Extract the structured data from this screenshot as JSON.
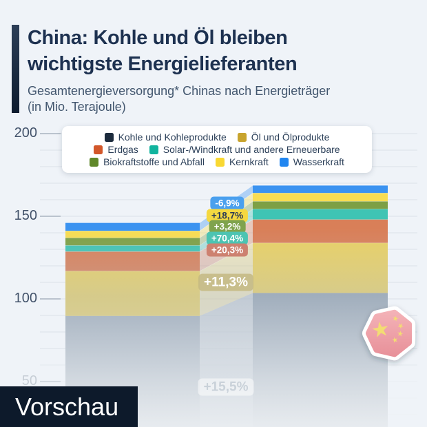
{
  "header": {
    "title_line1": "China: Kohle und Öl bleiben",
    "title_line2": "wichtigste Energielieferanten",
    "subtitle_line1": "Gesamtenergieversorgung* Chinas nach Energieträger",
    "subtitle_line2": "(in Mio. Terajoule)"
  },
  "preview": {
    "label": "Vorschau"
  },
  "y_axis": {
    "ticks": [
      200,
      150,
      100,
      50
    ],
    "faded_ticks": [
      50
    ]
  },
  "legend": {
    "rows": [
      [
        {
          "label": "Kohle und Kohleprodukte",
          "color": "#1c2b3d"
        },
        {
          "label": "Öl und Ölprodukte",
          "color": "#c8a42e"
        }
      ],
      [
        {
          "label": "Erdgas",
          "color": "#d2572a"
        },
        {
          "label": "Solar-/Windkraft und andere Erneuerbare",
          "color": "#12b49e"
        }
      ],
      [
        {
          "label": "Biokraftstoffe und Abfall",
          "color": "#5f8729"
        },
        {
          "label": "Kernkraft",
          "color": "#f9d832"
        },
        {
          "label": "Wasserkraft",
          "color": "#2186f0"
        }
      ]
    ]
  },
  "chart_data": {
    "type": "area",
    "stacked": true,
    "title": "Gesamtenergieversorgung Chinas nach Energieträger",
    "unit": "Mio. Terajoule",
    "categories": [
      "",
      ""
    ],
    "ylim": [
      0,
      200
    ],
    "yticks": [
      50,
      100,
      150,
      200
    ],
    "grid": true,
    "legend_position": "top",
    "series": [
      {
        "name": "Kohle und Kohleprodukte",
        "values": [
          89.7,
          103.6
        ],
        "change": "+15,5%",
        "color": "#1c2b3d",
        "bar_color": "#90a0b1"
      },
      {
        "name": "Öl und Ölprodukte",
        "values": [
          27.2,
          30.3
        ],
        "change": "+11,3%",
        "color": "#c8a42e",
        "bar_color": "#e9d164"
      },
      {
        "name": "Erdgas",
        "values": [
          11.8,
          14.2
        ],
        "change": "+20,3%",
        "color": "#d2572a",
        "bar_color": "#d97f58"
      },
      {
        "name": "Solar-/Windkraft und andere Erneuerbare",
        "values": [
          3.7,
          6.3
        ],
        "change": "+70,4%",
        "color": "#12b49e",
        "bar_color": "#3fc4b4"
      },
      {
        "name": "Biokraftstoffe und Abfall",
        "values": [
          4.6,
          4.7
        ],
        "change": "+3,2%",
        "color": "#5f8729",
        "bar_color": "#7da045"
      },
      {
        "name": "Kernkraft",
        "values": [
          4.2,
          5.0
        ],
        "change": "+18,7%",
        "color": "#f9d832",
        "bar_color": "#f8dd52"
      },
      {
        "name": "Wasserkraft",
        "values": [
          4.9,
          4.6
        ],
        "change": "-6,9%",
        "color": "#2186f0",
        "bar_color": "#3b93f0"
      }
    ]
  },
  "change_labels": [
    {
      "series": "Wasserkraft",
      "text": "-6,9%",
      "bg": "#4aa0ee",
      "fg": "#ffffff",
      "size": "small"
    },
    {
      "series": "Kernkraft",
      "text": "+18,7%",
      "bg": "#f5d840",
      "fg": "#2b3a55",
      "size": "small"
    },
    {
      "series": "Biokraftstoffe und Abfall",
      "text": "+3,2%",
      "bg": "#7fa34d",
      "fg": "#ffffff",
      "size": "small"
    },
    {
      "series": "Solar-/Windkraft und andere Erneuerbare",
      "text": "+70,4%",
      "bg": "#4cc4b2",
      "fg": "#ffffff",
      "size": "small"
    },
    {
      "series": "Erdgas",
      "text": "+20,3%",
      "bg": "#cd8170",
      "fg": "#ffffff",
      "size": "small"
    },
    {
      "series": "Öl und Ölprodukte",
      "text": "+11,3%",
      "bg": "rgba(196,184,129,0.85)",
      "fg": "#ffffff",
      "size": "large"
    },
    {
      "series": "Kohle und Kohleprodukte",
      "text": "+15,5%",
      "bg": "rgba(255,255,255,0.5)",
      "fg": "#c9d1d9",
      "size": "large"
    }
  ],
  "flag_badge": {
    "country": "China",
    "field_color_top": "#f4b3b8",
    "field_color_bottom": "#e78f98",
    "star_color": "#f3dc73"
  }
}
